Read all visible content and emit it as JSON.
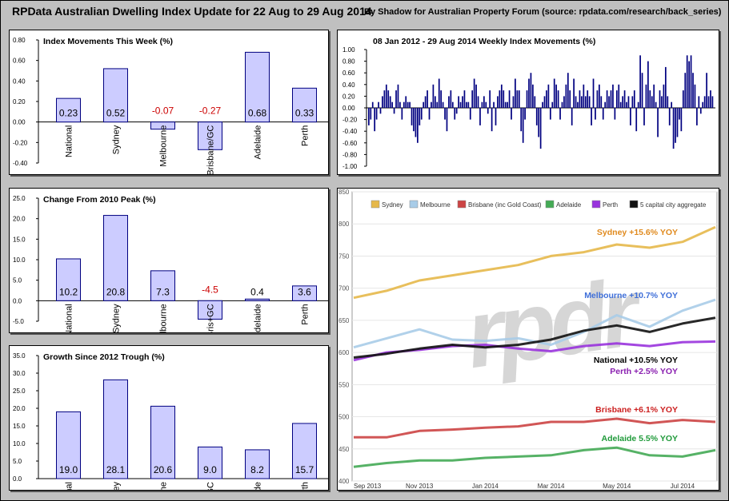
{
  "header": {
    "title": "RPData Australian Dwelling Index Update for 22 Aug to 29 Aug 2014",
    "subtitle": "By Shadow for Australian Property Forum",
    "source": "(source: rpdata.com/research/back_series)"
  },
  "colors": {
    "bar_fill": "#ccccff",
    "bar_stroke": "#000080",
    "negative_label": "#cc0000",
    "positive_label": "#000000",
    "weekly_bar": "#000080"
  },
  "chart_data": [
    {
      "type": "bar",
      "title": "Index Movements This Week (%)",
      "categories": [
        "National",
        "Sydney",
        "Melbourne",
        "Brisbane/GC",
        "Adelaide",
        "Perth"
      ],
      "values": [
        0.23,
        0.52,
        -0.07,
        -0.27,
        0.68,
        0.33
      ],
      "data_labels": [
        "0.23",
        "0.52",
        "-0.07",
        "-0.27",
        "0.68",
        "0.33"
      ],
      "ylim": [
        -0.4,
        0.8
      ],
      "yticks": [
        0.8,
        0.6,
        0.4,
        0.2,
        0.0,
        -0.2,
        -0.4
      ],
      "ytick_labels": [
        "0.80",
        "0.60",
        "0.40",
        "0.20",
        "0.00",
        "-0.20",
        "-0.40"
      ]
    },
    {
      "type": "bar",
      "title": "Change From 2010 Peak (%)",
      "categories": [
        "National",
        "Sydney",
        "Melbourne",
        "Bris+GC",
        "Adelaide",
        "Perth"
      ],
      "values": [
        10.2,
        20.8,
        7.3,
        -4.5,
        0.4,
        3.6
      ],
      "data_labels": [
        "10.2",
        "20.8",
        "7.3",
        "-4.5",
        "0.4",
        "3.6"
      ],
      "ylim": [
        -5,
        25
      ],
      "yticks": [
        25,
        20,
        15,
        10,
        5,
        0,
        -5
      ],
      "ytick_labels": [
        "25.0",
        "20.0",
        "15.0",
        "10.0",
        "5.0",
        "0.0",
        "-5.0"
      ]
    },
    {
      "type": "bar",
      "title": "Growth Since 2012 Trough (%)",
      "categories": [
        "National",
        "Sydney",
        "Melbourne",
        "Bris+GC",
        "Adelaide",
        "Perth"
      ],
      "values": [
        19.0,
        28.1,
        20.6,
        9.0,
        8.2,
        15.7
      ],
      "data_labels": [
        "19.0",
        "28.1",
        "20.6",
        "9.0",
        "8.2",
        "15.7"
      ],
      "ylim": [
        0,
        35
      ],
      "yticks": [
        35,
        30,
        25,
        20,
        15,
        10,
        5,
        0
      ],
      "ytick_labels": [
        "35.0",
        "30.0",
        "25.0",
        "20.0",
        "15.0",
        "10.0",
        "5.0",
        "0.0"
      ]
    },
    {
      "type": "bar",
      "title": "08 Jan 2012 - 29 Aug 2014 Weekly Index Movements (%)",
      "ylim": [
        -1.0,
        1.0
      ],
      "yticks": [
        1.0,
        0.8,
        0.6,
        0.4,
        0.2,
        0.0,
        -0.2,
        -0.4,
        -0.6,
        -0.8,
        -1.0
      ],
      "ytick_labels": [
        "1.00",
        "0.80",
        "0.60",
        "0.40",
        "0.20",
        "0.00",
        "-0.20",
        "-0.40",
        "-0.60",
        "-0.80",
        "-1.00"
      ],
      "values": [
        -0.3,
        -0.2,
        0.1,
        -0.4,
        -0.2,
        0.1,
        -0.1,
        0.2,
        0.3,
        0.4,
        0.3,
        0.2,
        0.1,
        -0.1,
        0.3,
        0.4,
        0.1,
        -0.2,
        0.1,
        0.2,
        0.1,
        0.1,
        -0.3,
        -0.4,
        -0.5,
        -0.6,
        -0.3,
        -0.2,
        0.1,
        0.2,
        0.3,
        -0.2,
        0.1,
        0.4,
        0.2,
        0.1,
        0.5,
        0.3,
        0.1,
        -0.2,
        -0.4,
        0.2,
        0.3,
        0.1,
        -0.2,
        -0.1,
        0.2,
        0.1,
        0.2,
        0.3,
        0.1,
        0.1,
        -0.2,
        0.3,
        0.5,
        0.4,
        0.2,
        -0.3,
        0.1,
        0.2,
        0.1,
        -0.1,
        0.3,
        -0.4,
        0.1,
        -0.3,
        0.2,
        0.3,
        0.4,
        0.3,
        0.1,
        0.1,
        0.3,
        -0.2,
        0.2,
        0.5,
        0.3,
        0.3,
        -0.4,
        -0.6,
        -0.2,
        0.3,
        0.5,
        0.6,
        0.4,
        0.2,
        -0.3,
        -0.5,
        -0.7,
        0.1,
        0.2,
        0.3,
        0.4,
        -0.2,
        0.1,
        0.5,
        0.4,
        0.3,
        -0.2,
        0.1,
        0.2,
        0.4,
        0.6,
        0.3,
        -0.3,
        0.5,
        0.2,
        0.1,
        0.3,
        0.2,
        0.4,
        0.2,
        0.3,
        0.2,
        -0.3,
        0.5,
        -0.2,
        0.3,
        0.4,
        0.2,
        -0.2,
        0.1,
        0.3,
        0.2,
        0.3,
        0.4,
        -0.2,
        0.3,
        0.4,
        0.1,
        0.2,
        0.3,
        0.1,
        0.2,
        -0.3,
        0.2,
        0.3,
        -0.4,
        0.1,
        0.9,
        0.6,
        -0.3,
        0.4,
        0.8,
        0.3,
        0.2,
        0.4,
        0.1,
        -0.5,
        0.3,
        0.2,
        0.4,
        0.7,
        0.2,
        -0.3,
        0.1,
        -0.7,
        -0.6,
        -0.5,
        -0.2,
        -0.4,
        0.3,
        0.6,
        0.9,
        0.8,
        0.9,
        0.6,
        0.4,
        -0.3,
        0.2,
        -0.1,
        0.1,
        0.2,
        0.6,
        0.2,
        0.3,
        0.2
      ]
    },
    {
      "type": "line",
      "legend": [
        "Sydney",
        "Melbourne",
        "Brisbane (inc Gold Coast)",
        "Adelaide",
        "Perth",
        "5 capital city aggregate"
      ],
      "series_colors": [
        "#e6b84a",
        "#a8cce8",
        "#cc4444",
        "#44aa55",
        "#9933dd",
        "#111111"
      ],
      "x": [
        "Sep 2013",
        "Oct 2013",
        "Nov 2013",
        "Dec 2013",
        "Jan 2014",
        "Feb 2014",
        "Mar 2014",
        "Apr 2014",
        "May 2014",
        "Jun 2014",
        "Jul 2014",
        "Aug 2014"
      ],
      "xtick_labels": [
        "Sep 2013",
        "Nov 2013",
        "Jan 2014",
        "Mar 2014",
        "May 2014",
        "Jul 2014"
      ],
      "ylim": [
        400,
        850
      ],
      "yticks": [
        850,
        800,
        750,
        700,
        650,
        600,
        550,
        500,
        450,
        400
      ],
      "series": [
        {
          "name": "Sydney",
          "values": [
            685,
            696,
            712,
            720,
            728,
            736,
            750,
            756,
            768,
            763,
            772,
            795
          ]
        },
        {
          "name": "Melbourne",
          "values": [
            608,
            622,
            636,
            620,
            618,
            622,
            612,
            632,
            658,
            640,
            665,
            682
          ]
        },
        {
          "name": "Brisbane (inc Gold Coast)",
          "values": [
            468,
            468,
            478,
            480,
            483,
            485,
            492,
            492,
            497,
            490,
            495,
            492
          ]
        },
        {
          "name": "Adelaide",
          "values": [
            422,
            428,
            432,
            432,
            436,
            438,
            440,
            448,
            452,
            440,
            438,
            448
          ]
        },
        {
          "name": "Perth",
          "values": [
            588,
            600,
            604,
            610,
            612,
            606,
            602,
            610,
            614,
            610,
            616,
            617
          ]
        },
        {
          "name": "5 capital city aggregate",
          "values": [
            592,
            598,
            606,
            612,
            608,
            612,
            620,
            634,
            642,
            632,
            645,
            654
          ]
        }
      ],
      "annotations": [
        {
          "text": "Sydney +15.6% YOY",
          "color": "#e08a1e"
        },
        {
          "text": "Melbourne +10.7% YOY",
          "color": "#3f6fd9"
        },
        {
          "text": "National +10.5% YOY",
          "color": "#000000"
        },
        {
          "text": "Perth +2.5% YOY",
          "color": "#8a1fb0"
        },
        {
          "text": "Brisbane +6.1% YOY",
          "color": "#cc1f1f"
        },
        {
          "text": "Adelaide 5.5% YOY",
          "color": "#1f9a3a"
        }
      ],
      "watermark": "rpdr"
    }
  ]
}
